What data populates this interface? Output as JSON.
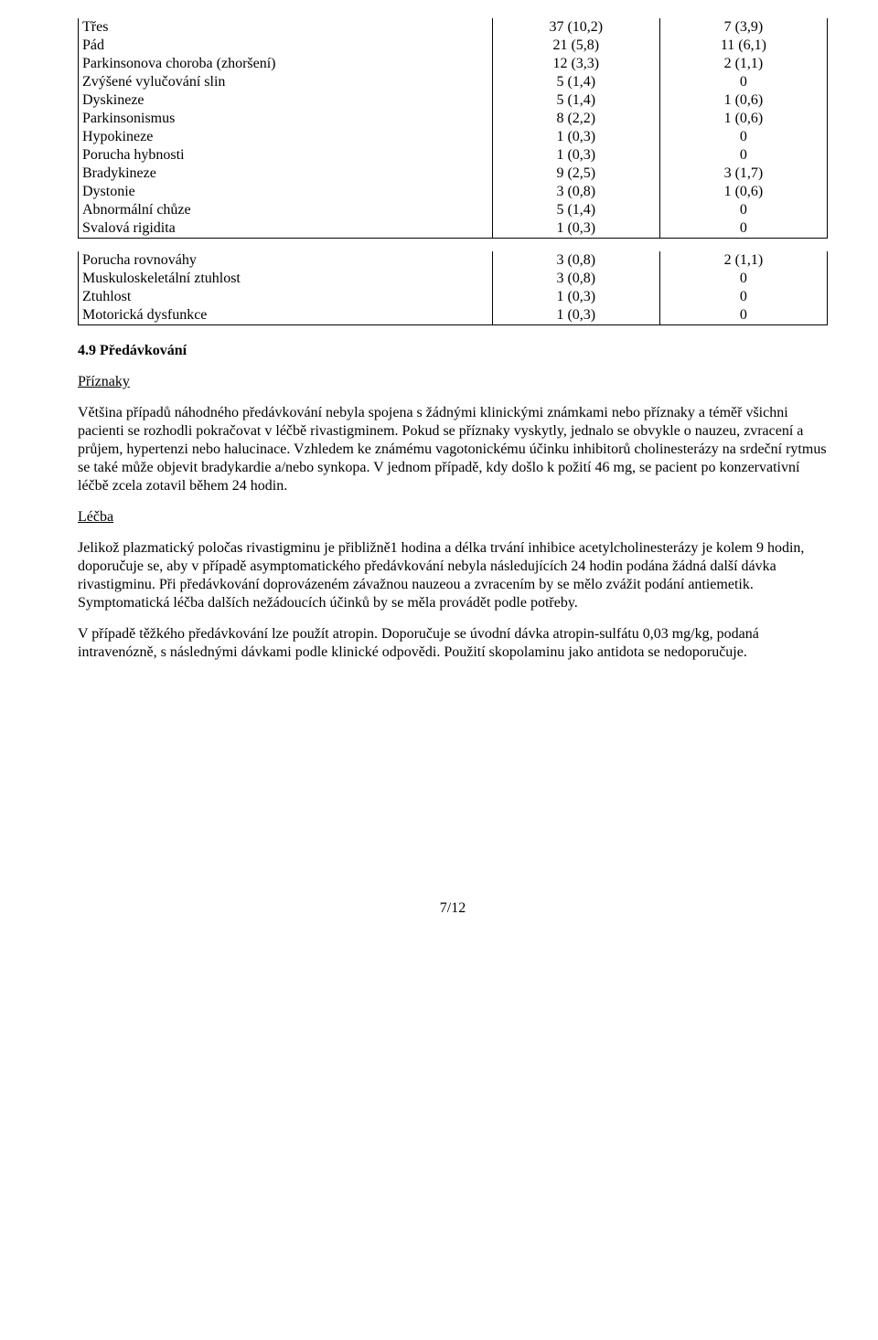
{
  "tableA": {
    "rows": [
      {
        "label": "Třes",
        "v1": "37 (10,2)",
        "v2": "7 (3,9)"
      },
      {
        "label": "Pád",
        "v1": "21 (5,8)",
        "v2": "11 (6,1)"
      },
      {
        "label": "Parkinsonova choroba (zhoršení)",
        "v1": "12 (3,3)",
        "v2": "2 (1,1)"
      },
      {
        "label": "Zvýšené vylučování slin",
        "v1": "5 (1,4)",
        "v2": "0"
      },
      {
        "label": "Dyskineze",
        "v1": "5 (1,4)",
        "v2": "1 (0,6)"
      },
      {
        "label": "Parkinsonismus",
        "v1": "8 (2,2)",
        "v2": "1 (0,6)"
      },
      {
        "label": "Hypokineze",
        "v1": "1 (0,3)",
        "v2": "0"
      },
      {
        "label": "Porucha hybnosti",
        "v1": "1 (0,3)",
        "v2": "0"
      },
      {
        "label": "Bradykineze",
        "v1": "9 (2,5)",
        "v2": "3 (1,7)"
      },
      {
        "label": "Dystonie",
        "v1": "3 (0,8)",
        "v2": "1 (0,6)"
      },
      {
        "label": "Abnormální chůze",
        "v1": "5 (1,4)",
        "v2": "0"
      },
      {
        "label": "Svalová rigidita",
        "v1": "1 (0,3)",
        "v2": "0"
      }
    ]
  },
  "tableB": {
    "rows": [
      {
        "label": "Porucha rovnováhy",
        "v1": "3 (0,8)",
        "v2": "2 (1,1)"
      },
      {
        "label": "Muskuloskeletální ztuhlost",
        "v1": "3 (0,8)",
        "v2": "0"
      },
      {
        "label": "Ztuhlost",
        "v1": "1 (0,3)",
        "v2": "0"
      },
      {
        "label": "Motorická dysfunkce",
        "v1": "1 (0,3)",
        "v2": "0"
      }
    ]
  },
  "section_heading": "4.9 Předávkování",
  "subhead1": "Příznaky",
  "para1": "Většina případů náhodného předávkování nebyla spojena s žádnými klinickými známkami nebo příznaky a téměř všichni pacienti se rozhodli pokračovat v léčbě rivastigminem. Pokud se příznaky vyskytly, jednalo se obvykle o nauzeu, zvracení a průjem, hypertenzi nebo halucinace. Vzhledem ke známému vagotonickému účinku inhibitorů cholinesterázy na srdeční rytmus se také může objevit bradykardie a/nebo synkopa. V jednom případě, kdy došlo k požití 46 mg, se pacient po konzervativní léčbě zcela zotavil během 24 hodin.",
  "subhead2": "Léčba",
  "para2": "Jelikož plazmatický poločas rivastigminu je přibližně1 hodina a délka trvání inhibice acetylcholinesterázy je kolem 9 hodin, doporučuje se, aby v případě asymptomatického předávkování nebyla následujících 24 hodin podána žádná další dávka rivastigminu. Při předávkování doprovázeném závažnou nauzeou a zvracením by se mělo zvážit podání antiemetik. Symptomatická léčba dalších nežádoucích účinků by se měla provádět podle potřeby.",
  "para3": "V případě těžkého předávkování lze použít atropin. Doporučuje se úvodní dávka atropin-sulfátu 0,03 mg/kg, podaná intravenózně, s následnými dávkami podle klinické odpovědi. Použití skopolaminu jako antidota se nedoporučuje.",
  "page_footer": "7/12"
}
